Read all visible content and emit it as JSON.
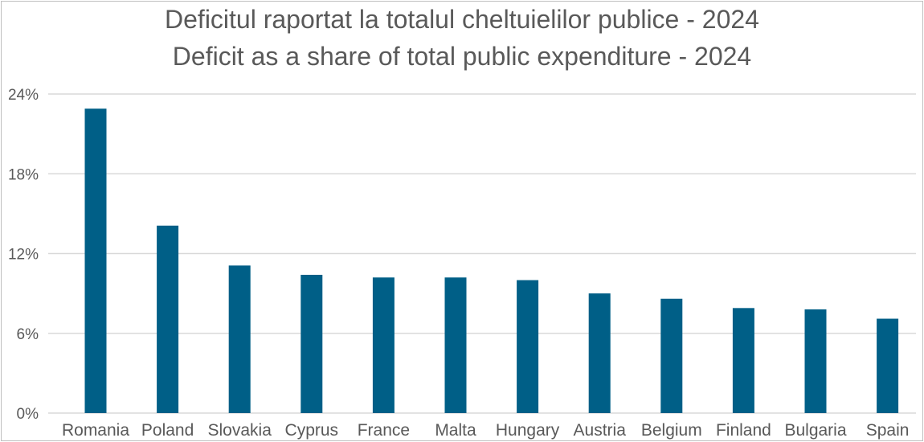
{
  "chart_data": {
    "type": "bar",
    "title": "Deficitul raportat la totalul cheltuielilor publice - 2024",
    "subtitle": "Deficit as a share of total public expenditure - 2024",
    "xlabel": "",
    "ylabel": "",
    "categories": [
      "Romania",
      "Poland",
      "Slovakia",
      "Cyprus",
      "France",
      "Malta",
      "Hungary",
      "Austria",
      "Belgium",
      "Finland",
      "Bulgaria",
      "Spain"
    ],
    "values": [
      22.9,
      14.1,
      11.1,
      10.4,
      10.2,
      10.2,
      10.0,
      9.0,
      8.6,
      7.9,
      7.8,
      7.1
    ],
    "value_unit": "%",
    "ylim": [
      0,
      24
    ],
    "yticks": [
      0,
      6,
      12,
      18,
      24
    ],
    "ytick_labels": [
      "0%",
      "6%",
      "12%",
      "18%",
      "24%"
    ],
    "grid": true,
    "bar_color": "#005f87",
    "grid_color": "#d9d9d9",
    "text_color": "#595959"
  }
}
